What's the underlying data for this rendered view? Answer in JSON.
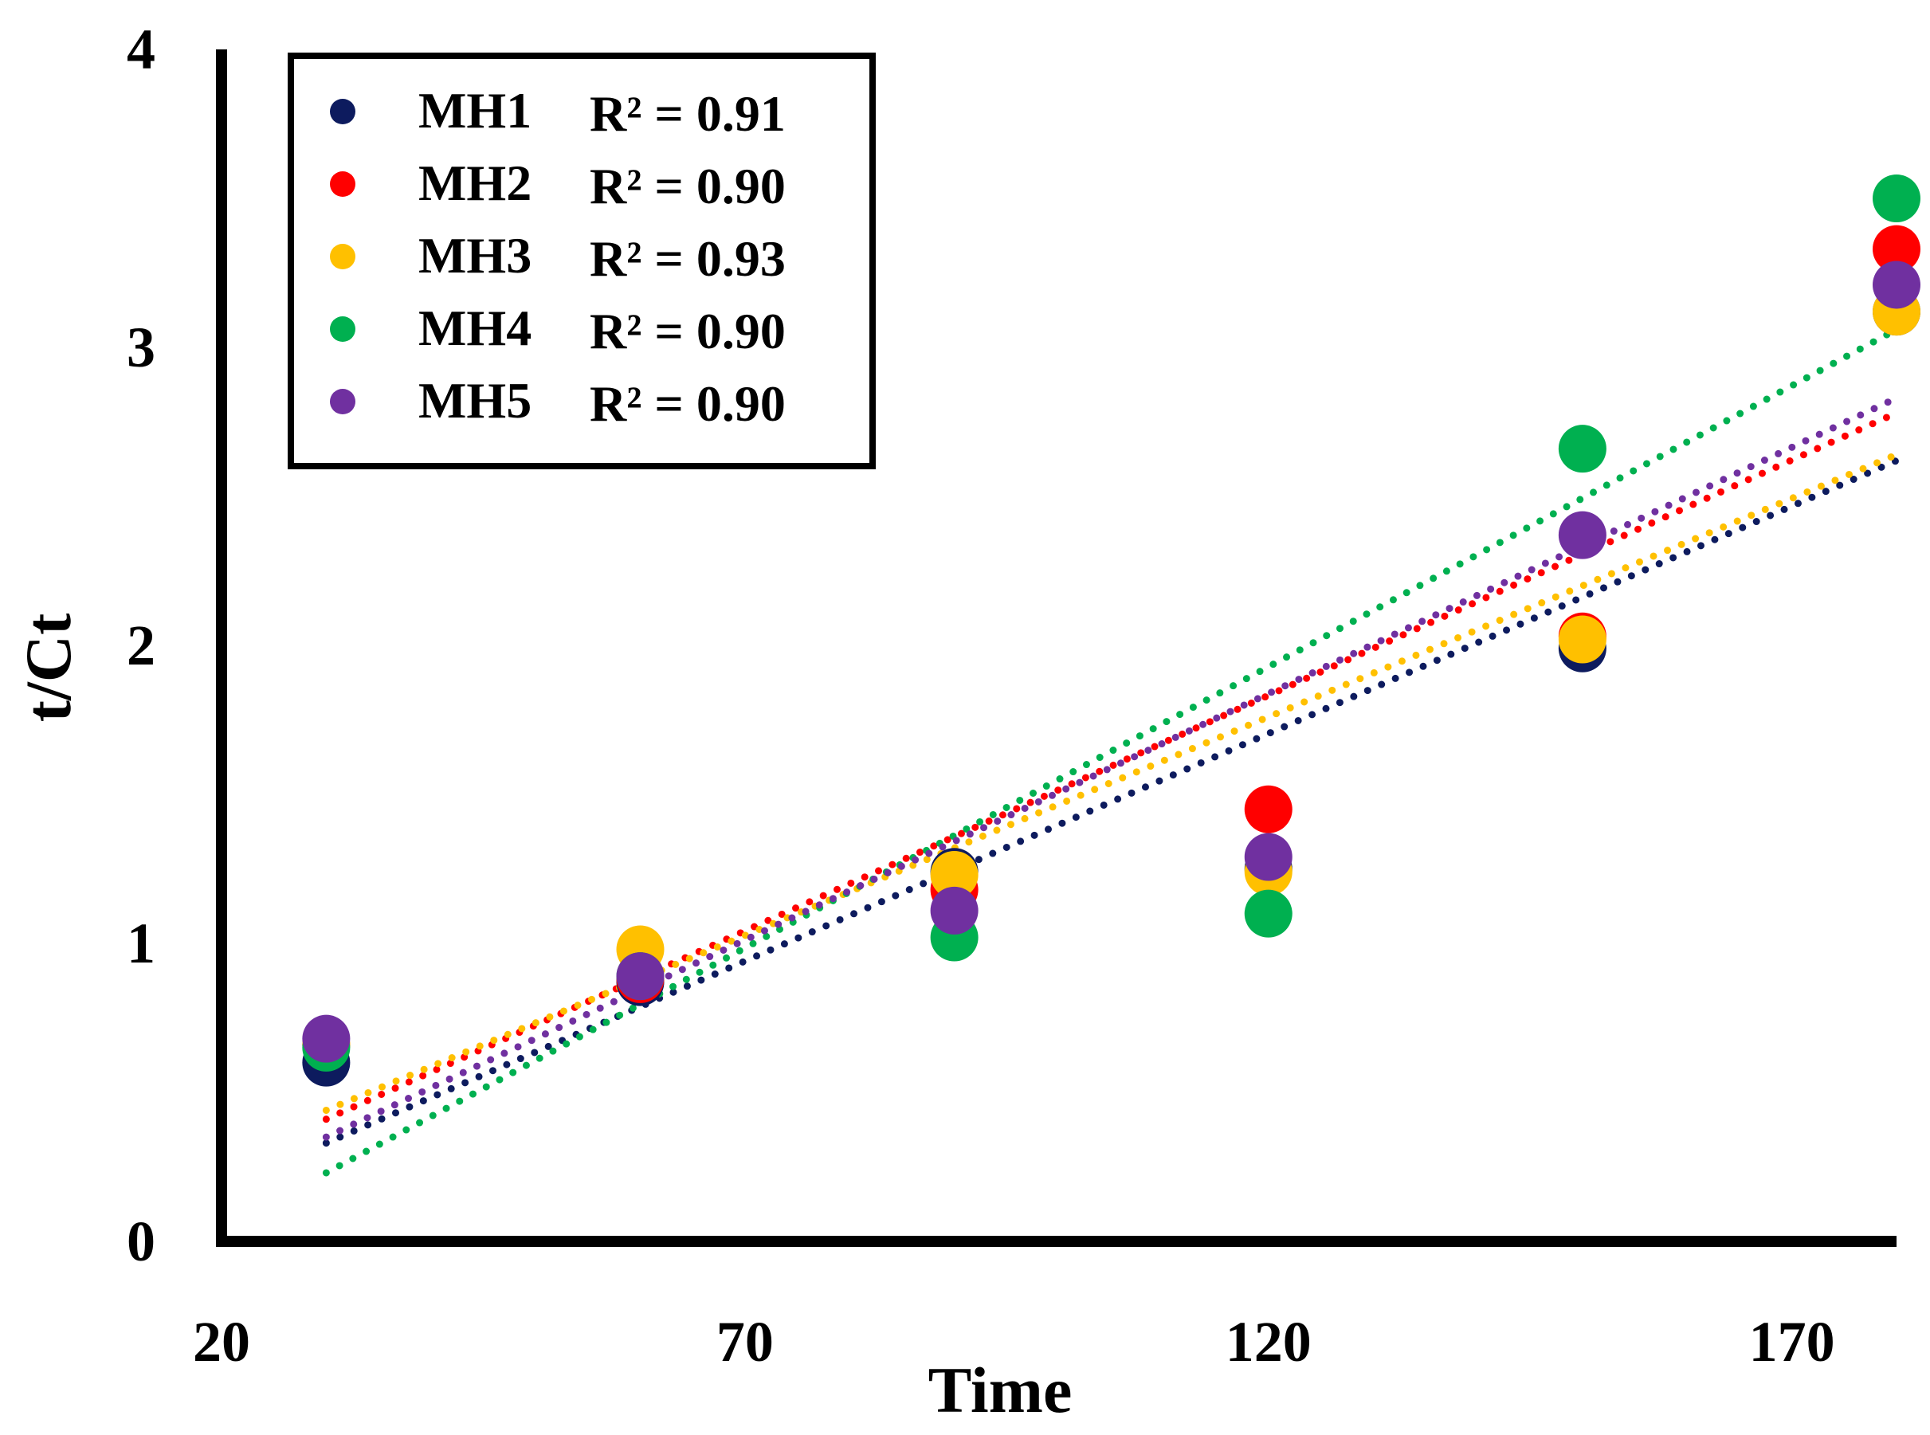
{
  "chart_data": {
    "type": "scatter",
    "title": "",
    "xlabel": "Time",
    "ylabel": "t/Ct",
    "xlim": [
      20,
      180
    ],
    "ylim": [
      0,
      4
    ],
    "xticks": [
      20,
      70,
      120,
      170
    ],
    "yticks": [
      0,
      1,
      2,
      3,
      4
    ],
    "grid": false,
    "legend_position": "top-left",
    "trendline": "linear-dotted",
    "x": [
      30,
      60,
      90,
      120,
      150,
      180
    ],
    "series": [
      {
        "name": "MH1",
        "r2_label": "R² = 0.91",
        "color": "#0d1b5e",
        "values": [
          0.6,
          0.87,
          1.24,
          1.25,
          1.99,
          3.12
        ],
        "trend": [
          0.33,
          2.62
        ]
      },
      {
        "name": "MH2",
        "r2_label": "R² = 0.90",
        "color": "#ff0000",
        "values": [
          0.66,
          0.88,
          1.18,
          1.45,
          2.03,
          3.33
        ],
        "trend": [
          0.41,
          2.78
        ]
      },
      {
        "name": "MH3",
        "r2_label": "R² = 0.93",
        "color": "#ffc000",
        "values": [
          0.66,
          0.98,
          1.23,
          1.24,
          2.02,
          3.12
        ],
        "trend": [
          0.44,
          2.64
        ]
      },
      {
        "name": "MH4",
        "r2_label": "R² = 0.90",
        "color": "#00b050",
        "values": [
          0.65,
          0.89,
          1.02,
          1.1,
          2.66,
          3.5
        ],
        "trend": [
          0.23,
          3.06
        ]
      },
      {
        "name": "MH5",
        "r2_label": "R² = 0.90",
        "color": "#7030a0",
        "values": [
          0.68,
          0.89,
          1.11,
          1.29,
          2.37,
          3.21
        ],
        "trend": [
          0.35,
          2.83
        ]
      }
    ]
  }
}
